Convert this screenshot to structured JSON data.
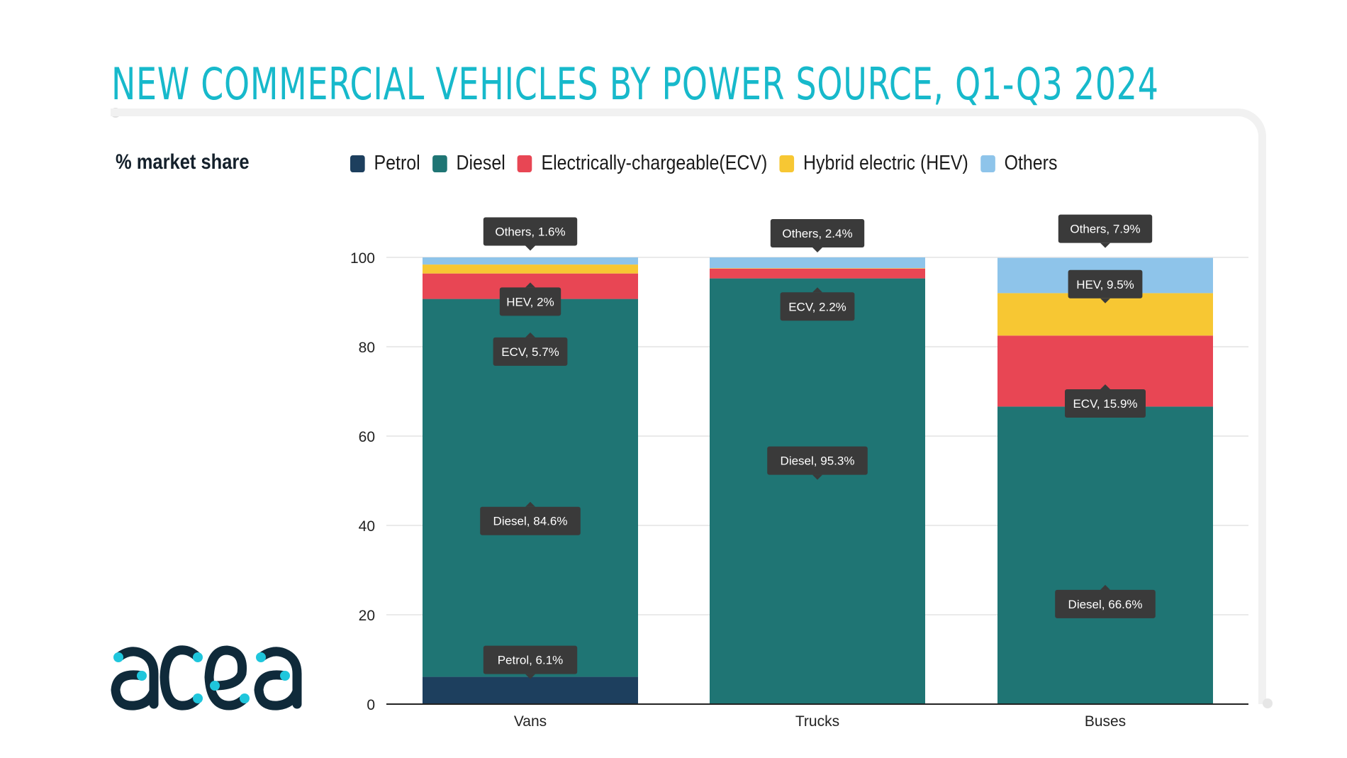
{
  "title": "NEW COMMERCIAL VEHICLES BY POWER SOURCE, Q1-Q3 2024",
  "logo_text": "acea",
  "chart_data": {
    "type": "bar",
    "stacked": true,
    "title": "NEW COMMERCIAL VEHICLES BY POWER SOURCE, Q1-Q3 2024",
    "ylabel": "% market share",
    "xlabel": "",
    "ylim": [
      0,
      100
    ],
    "yticks": [
      "0",
      "20",
      "40",
      "60",
      "80",
      "100"
    ],
    "grid": true,
    "legend_position": "top",
    "categories": [
      "Vans",
      "Trucks",
      "Buses"
    ],
    "series": [
      {
        "name": "Petrol",
        "color": "#1d3f5e",
        "values": [
          6.1,
          0,
          0
        ]
      },
      {
        "name": "Diesel",
        "color": "#1f7574",
        "values": [
          84.6,
          95.3,
          66.6
        ]
      },
      {
        "name": "Electrically-chargeable(ECV)",
        "color": "#e84654",
        "values": [
          5.7,
          2.2,
          15.9
        ]
      },
      {
        "name": "Hybrid electric (HEV)",
        "color": "#f7c733",
        "values": [
          2,
          0.1,
          9.5
        ]
      },
      {
        "name": "Others",
        "color": "#8ec4ea",
        "values": [
          1.6,
          2.4,
          7.9
        ]
      }
    ],
    "data_labels": [
      [
        "Petrol, 6.1%",
        "Diesel, 84.6%",
        "ECV, 5.7%",
        "HEV, 2%",
        "Others, 1.6%"
      ],
      [
        "Diesel, 95.3%",
        "ECV, 2.2%",
        "Others, 2.4%"
      ],
      [
        "Diesel, 66.6%",
        "ECV, 15.9%",
        "HEV, 9.5%",
        "Others, 7.9%"
      ]
    ]
  }
}
